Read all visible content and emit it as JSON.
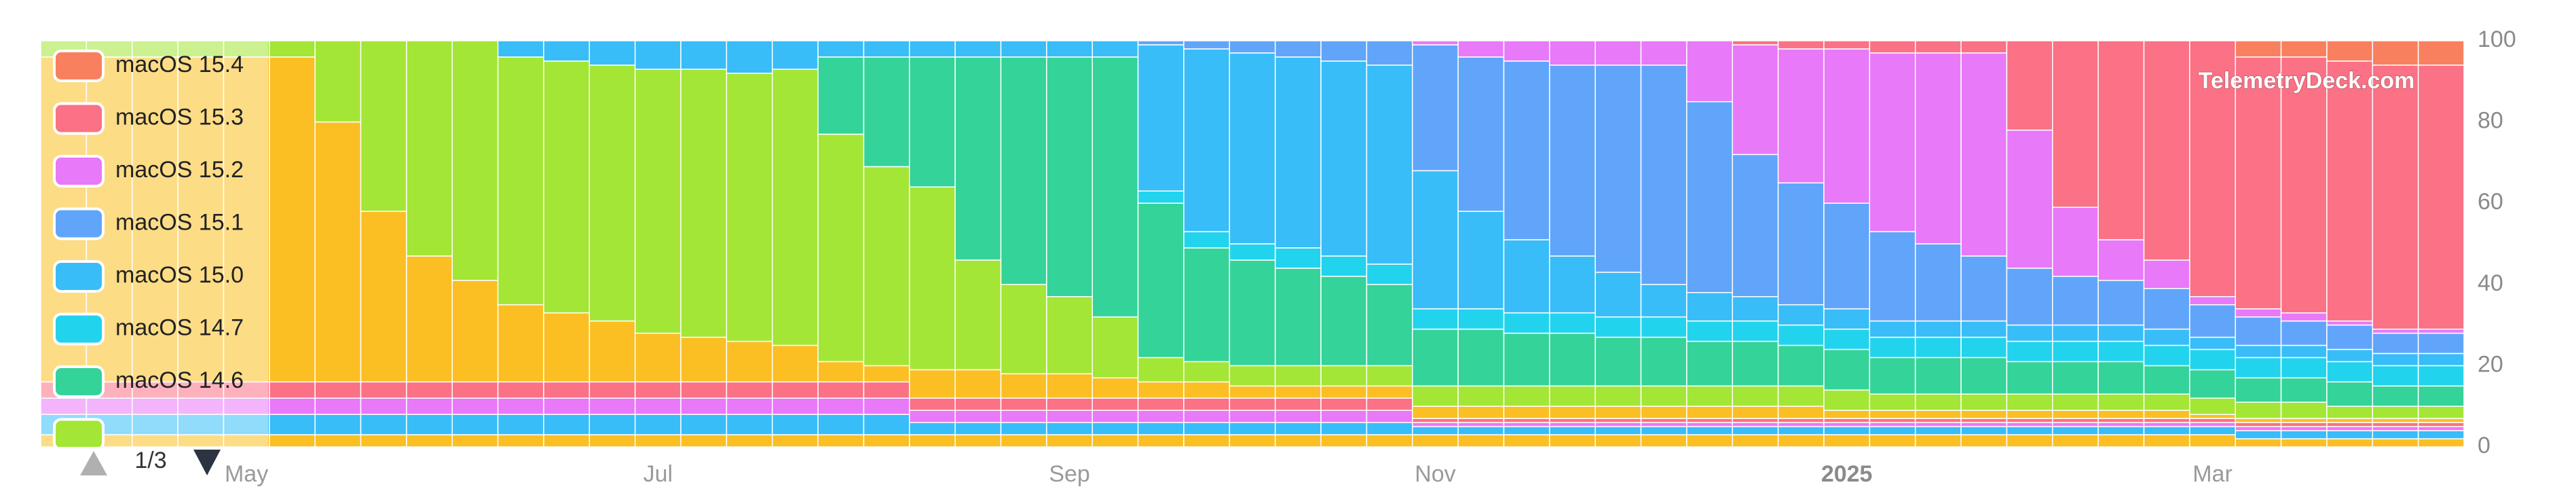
{
  "chart_data": {
    "type": "stacked_bar",
    "watermark": "TelemetryDeck.com",
    "legend_page": "1/3",
    "legend": "upper left",
    "grid": false,
    "ylim": [
      0,
      100
    ],
    "yticks": [
      0,
      20,
      40,
      60,
      80,
      100
    ],
    "categories": [
      null,
      null,
      null,
      null,
      "May",
      null,
      null,
      null,
      null,
      null,
      null,
      null,
      null,
      "Jul",
      null,
      null,
      null,
      null,
      null,
      null,
      null,
      null,
      "Sep",
      null,
      null,
      null,
      null,
      null,
      null,
      null,
      "Nov",
      null,
      null,
      null,
      null,
      null,
      null,
      null,
      null,
      "2025",
      null,
      null,
      null,
      null,
      null,
      null,
      null,
      "Mar",
      null,
      null,
      null,
      null,
      null
    ],
    "series": [
      {
        "color": "#fbbf24",
        "values": [
          3,
          3,
          3,
          3,
          3,
          3,
          3,
          3,
          3,
          3,
          3,
          3,
          3,
          3,
          3,
          3,
          3,
          3,
          3,
          3,
          3,
          3,
          3,
          3,
          3,
          3,
          3,
          3,
          3,
          3,
          3,
          3,
          3,
          3,
          3,
          3,
          3,
          3,
          3,
          3,
          3,
          3,
          3,
          3,
          3,
          3,
          3,
          3,
          2,
          2,
          2,
          2,
          2
        ]
      },
      {
        "color": "#38bdf8",
        "values": [
          5,
          5,
          5,
          5,
          5,
          5,
          5,
          5,
          5,
          5,
          5,
          5,
          5,
          5,
          5,
          5,
          5,
          5,
          5,
          3,
          3,
          3,
          3,
          3,
          3,
          3,
          3,
          3,
          3,
          3,
          2,
          2,
          2,
          2,
          2,
          2,
          2,
          2,
          2,
          2,
          2,
          2,
          2,
          2,
          2,
          2,
          2,
          2,
          2,
          2,
          2,
          2,
          2
        ]
      },
      {
        "color": "#e879f9",
        "values": [
          4,
          4,
          4,
          4,
          4,
          4,
          4,
          4,
          4,
          4,
          4,
          4,
          4,
          4,
          4,
          4,
          4,
          4,
          4,
          3,
          3,
          3,
          3,
          3,
          3,
          3,
          3,
          3,
          3,
          3,
          1,
          1,
          1,
          1,
          1,
          1,
          1,
          1,
          1,
          1,
          1,
          1,
          1,
          1,
          1,
          1,
          1,
          1,
          1,
          1,
          1,
          1,
          1
        ]
      },
      {
        "color": "#fb7185",
        "values": [
          4,
          4,
          4,
          4,
          4,
          4,
          4,
          4,
          4,
          4,
          4,
          4,
          4,
          4,
          4,
          4,
          4,
          4,
          4,
          3,
          3,
          3,
          3,
          3,
          3,
          3,
          3,
          3,
          3,
          3,
          1,
          1,
          1,
          1,
          1,
          1,
          1,
          1,
          1,
          1,
          1,
          1,
          1,
          1,
          1,
          1,
          1,
          1,
          1,
          1,
          1,
          1,
          1
        ]
      },
      {
        "color": "#fbbf24",
        "values": [
          80,
          80,
          80,
          80,
          80,
          80,
          64,
          42,
          31,
          25,
          19,
          17,
          15,
          12,
          11,
          10,
          9,
          5,
          4,
          7,
          7,
          6,
          6,
          5,
          4,
          4,
          3,
          3,
          3,
          3,
          3,
          3,
          3,
          3,
          3,
          3,
          3,
          3,
          3,
          2,
          2,
          2,
          2,
          2,
          2,
          2,
          2,
          1,
          1,
          1,
          1,
          1,
          1
        ]
      },
      {
        "color": "#a3e635",
        "values": [
          4,
          4,
          4,
          4,
          4,
          4,
          20,
          42,
          53,
          59,
          61,
          62,
          63,
          65,
          66,
          66,
          68,
          56,
          49,
          45,
          27,
          22,
          19,
          15,
          6,
          5,
          5,
          5,
          5,
          5,
          5,
          5,
          5,
          5,
          5,
          5,
          5,
          5,
          5,
          5,
          4,
          4,
          4,
          4,
          4,
          4,
          4,
          4,
          4,
          4,
          3,
          3,
          3
        ]
      },
      {
        "name": "macOS 14.6",
        "color": "#34d399",
        "values": [
          0,
          0,
          0,
          0,
          0,
          0,
          0,
          0,
          0,
          0,
          0,
          0,
          0,
          0,
          0,
          0,
          0,
          19,
          27,
          32,
          50,
          56,
          59,
          64,
          38,
          28,
          26,
          24,
          22,
          20,
          14,
          14,
          13,
          13,
          12,
          12,
          11,
          11,
          10,
          10,
          9,
          9,
          9,
          8,
          8,
          8,
          7,
          7,
          6,
          6,
          6,
          5,
          5
        ]
      },
      {
        "name": "macOS 14.7",
        "color": "#22d3ee",
        "values": [
          0,
          0,
          0,
          0,
          0,
          0,
          0,
          0,
          0,
          0,
          0,
          0,
          0,
          0,
          0,
          0,
          0,
          0,
          0,
          0,
          0,
          0,
          0,
          0,
          3,
          4,
          4,
          5,
          5,
          5,
          5,
          5,
          5,
          5,
          5,
          5,
          5,
          5,
          5,
          5,
          5,
          5,
          5,
          5,
          5,
          5,
          5,
          5,
          5,
          5,
          5,
          5,
          5
        ]
      },
      {
        "name": "macOS 15.0",
        "color": "#38bdf8",
        "values": [
          0,
          0,
          0,
          0,
          0,
          0,
          0,
          0,
          0,
          0,
          4,
          5,
          6,
          7,
          7,
          8,
          7,
          4,
          4,
          4,
          4,
          4,
          4,
          4,
          36,
          45,
          47,
          47,
          48,
          49,
          34,
          24,
          18,
          14,
          11,
          8,
          7,
          6,
          5,
          5,
          4,
          4,
          4,
          4,
          4,
          4,
          4,
          3,
          3,
          3,
          3,
          3,
          3
        ]
      },
      {
        "name": "macOS 15.1",
        "color": "#60a5fa",
        "values": [
          0,
          0,
          0,
          0,
          0,
          0,
          0,
          0,
          0,
          0,
          0,
          0,
          0,
          0,
          0,
          0,
          0,
          0,
          0,
          0,
          0,
          0,
          0,
          0,
          1,
          2,
          3,
          4,
          5,
          6,
          31,
          38,
          44,
          47,
          51,
          54,
          47,
          35,
          30,
          26,
          22,
          19,
          16,
          14,
          12,
          11,
          10,
          8,
          7,
          6,
          6,
          5,
          5
        ]
      },
      {
        "name": "macOS 15.2",
        "color": "#e879f9",
        "values": [
          0,
          0,
          0,
          0,
          0,
          0,
          0,
          0,
          0,
          0,
          0,
          0,
          0,
          0,
          0,
          0,
          0,
          0,
          0,
          0,
          0,
          0,
          0,
          0,
          0,
          0,
          0,
          0,
          0,
          0,
          1,
          4,
          5,
          6,
          6,
          6,
          15,
          27,
          33,
          38,
          44,
          47,
          50,
          34,
          17,
          10,
          7,
          2,
          2,
          2,
          1,
          1,
          1
        ]
      },
      {
        "name": "macOS 15.3",
        "color": "#fb7185",
        "values": [
          0,
          0,
          0,
          0,
          0,
          0,
          0,
          0,
          0,
          0,
          0,
          0,
          0,
          0,
          0,
          0,
          0,
          0,
          0,
          0,
          0,
          0,
          0,
          0,
          0,
          0,
          0,
          0,
          0,
          0,
          0,
          0,
          0,
          0,
          0,
          0,
          0,
          1,
          2,
          2,
          3,
          3,
          3,
          22,
          41,
          49,
          54,
          63,
          62,
          63,
          64,
          65,
          65
        ]
      },
      {
        "name": "macOS 15.4",
        "color": "#f9805f",
        "values": [
          0,
          0,
          0,
          0,
          0,
          0,
          0,
          0,
          0,
          0,
          0,
          0,
          0,
          0,
          0,
          0,
          0,
          0,
          0,
          0,
          0,
          0,
          0,
          0,
          0,
          0,
          0,
          0,
          0,
          0,
          0,
          0,
          0,
          0,
          0,
          0,
          0,
          0,
          0,
          0,
          0,
          0,
          0,
          0,
          0,
          0,
          0,
          0,
          4,
          4,
          5,
          6,
          6
        ]
      }
    ]
  }
}
